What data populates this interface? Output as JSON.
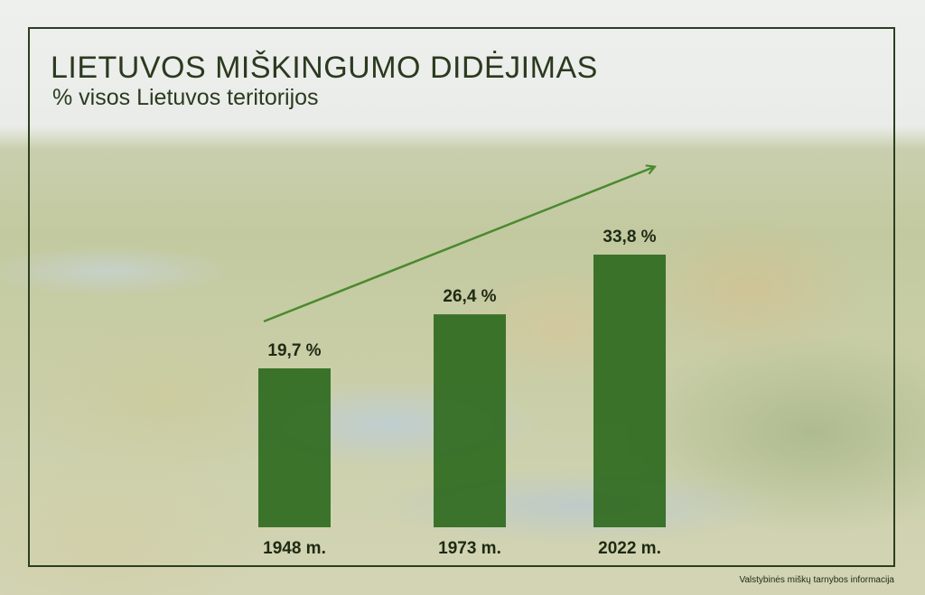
{
  "title": "LIETUVOS MIŠKINGUMO DIDĖJIMAS",
  "subtitle": "% visos Lietuvos teritorijos",
  "source": "Valstybinės miškų tarnybos informacija",
  "colors": {
    "bar": "#2f6a1f",
    "arrow": "#4a8a2e",
    "text": "#1e2a14",
    "frame": "#2c3e1f"
  },
  "chart_data": {
    "type": "bar",
    "categories": [
      "1948 m.",
      "1973 m.",
      "2022 m."
    ],
    "values": [
      19.7,
      26.4,
      33.8
    ],
    "value_labels": [
      "19,7 %",
      "26,4 %",
      "33,8 %"
    ],
    "title": "LIETUVOS MIŠKINGUMO DIDĖJIMAS",
    "subtitle": "% visos Lietuvos teritorijos",
    "ylim": [
      0,
      33.8
    ],
    "grid": false,
    "annotations": [
      "upward trend arrow"
    ]
  }
}
